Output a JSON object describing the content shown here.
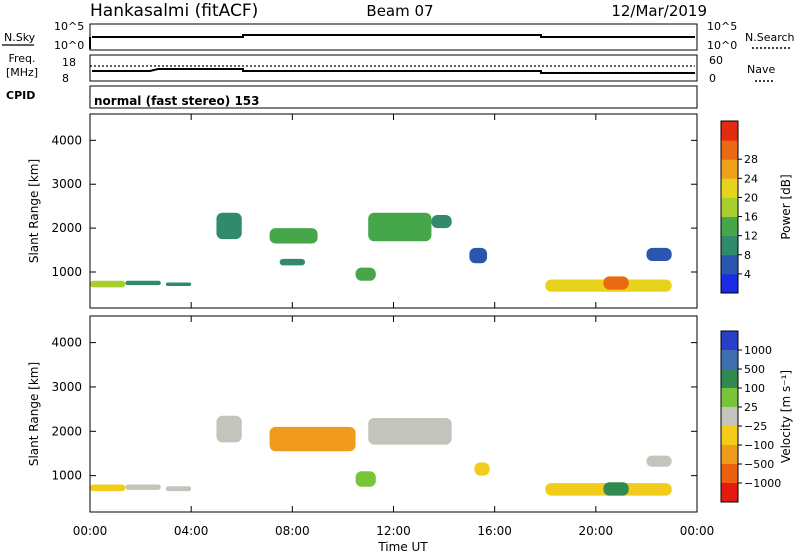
{
  "header": {
    "station": "Hankasalmi (fitACF)",
    "beam": "Beam 07",
    "date": "12/Mar/2019"
  },
  "top_panels": {
    "nsky_label": "N.Sky",
    "nsky_ticks": [
      "10^5",
      "10^0"
    ],
    "nsearch_label": "N.Search",
    "nsearch_ticks": [
      "10^5",
      "10^0"
    ],
    "freq_label_1": "Freq.",
    "freq_label_2": "[MHz]",
    "freq_ticks": [
      "18",
      "8"
    ],
    "nave_label": "Nave",
    "nave_ticks": [
      "60",
      "0"
    ],
    "cpid_label": "CPID",
    "cpid_text": "normal (fast stereo) 153"
  },
  "chart_data": [
    {
      "type": "heatmap",
      "title": "",
      "xlabel": "Time UT",
      "ylabel": "Slant Range [km]",
      "xlim": [
        0,
        24
      ],
      "ylim": [
        180,
        4600
      ],
      "x_ticks": [
        "00:00",
        "04:00",
        "08:00",
        "12:00",
        "16:00",
        "20:00",
        "00:00"
      ],
      "y_ticks": [
        "1000",
        "2000",
        "3000",
        "4000"
      ],
      "colorbar": {
        "label": "Power [dB]",
        "ticks": [
          "4",
          "8",
          "12",
          "16",
          "20",
          "24",
          "28"
        ],
        "colors": [
          "#1a2ae6",
          "#2a56b0",
          "#2f8a6e",
          "#46a64a",
          "#a8cf2e",
          "#e7d31c",
          "#f0a11c",
          "#ea6a14",
          "#e42a10"
        ]
      },
      "regions": [
        {
          "t": [
            0.0,
            1.4
          ],
          "r": [
            650,
            800
          ],
          "v": 16
        },
        {
          "t": [
            1.4,
            2.8
          ],
          "r": [
            700,
            800
          ],
          "v": 10
        },
        {
          "t": [
            3.0,
            4.0
          ],
          "r": [
            680,
            760
          ],
          "v": 8
        },
        {
          "t": [
            5.0,
            6.0
          ],
          "r": [
            1750,
            2350
          ],
          "v": 9
        },
        {
          "t": [
            7.1,
            9.0
          ],
          "r": [
            1650,
            2000
          ],
          "v": 14
        },
        {
          "t": [
            7.5,
            8.5
          ],
          "r": [
            1150,
            1300
          ],
          "v": 8
        },
        {
          "t": [
            10.5,
            11.3
          ],
          "r": [
            800,
            1100
          ],
          "v": 14
        },
        {
          "t": [
            11.0,
            13.5
          ],
          "r": [
            1700,
            2350
          ],
          "v": 12
        },
        {
          "t": [
            13.5,
            14.3
          ],
          "r": [
            2000,
            2300
          ],
          "v": 9
        },
        {
          "t": [
            15.0,
            15.7
          ],
          "r": [
            1200,
            1550
          ],
          "v": 6
        },
        {
          "t": [
            18.0,
            23.0
          ],
          "r": [
            550,
            830
          ],
          "v": 19
        },
        {
          "t": [
            20.3,
            21.3
          ],
          "r": [
            600,
            900
          ],
          "v": 26
        },
        {
          "t": [
            22.0,
            23.0
          ],
          "r": [
            1250,
            1550
          ],
          "v": 7
        }
      ]
    },
    {
      "type": "heatmap",
      "title": "",
      "xlabel": "Time UT",
      "ylabel": "Slant Range [km]",
      "xlim": [
        0,
        24
      ],
      "ylim": [
        180,
        4600
      ],
      "x_ticks": [
        "00:00",
        "04:00",
        "08:00",
        "12:00",
        "16:00",
        "20:00",
        "00:00"
      ],
      "y_ticks": [
        "1000",
        "2000",
        "3000",
        "4000"
      ],
      "colorbar": {
        "label": "Velocity [m s⁻¹]",
        "ticks": [
          "1000",
          "500",
          "100",
          "25",
          "−25",
          "−100",
          "−500",
          "−1000"
        ],
        "colors": [
          "#2840c8",
          "#3f6fb0",
          "#2f8a50",
          "#78c43a",
          "#c4c4bc",
          "#f2cc1a",
          "#f09a1e",
          "#ea6010",
          "#e41a10"
        ]
      },
      "regions": [
        {
          "t": [
            0.0,
            1.4
          ],
          "r": [
            650,
            800
          ],
          "v": -60
        },
        {
          "t": [
            1.4,
            2.8
          ],
          "r": [
            680,
            800
          ],
          "v": 0
        },
        {
          "t": [
            3.0,
            4.0
          ],
          "r": [
            650,
            760
          ],
          "v": 0
        },
        {
          "t": [
            5.0,
            6.0
          ],
          "r": [
            1750,
            2350
          ],
          "v": 0
        },
        {
          "t": [
            7.1,
            10.5
          ],
          "r": [
            1550,
            2100
          ],
          "v": -300
        },
        {
          "t": [
            10.5,
            11.3
          ],
          "r": [
            750,
            1100
          ],
          "v": 70
        },
        {
          "t": [
            11.0,
            14.3
          ],
          "r": [
            1700,
            2300
          ],
          "v": 0
        },
        {
          "t": [
            15.2,
            15.8
          ],
          "r": [
            1000,
            1300
          ],
          "v": -80
        },
        {
          "t": [
            18.0,
            23.0
          ],
          "r": [
            550,
            830
          ],
          "v": -60
        },
        {
          "t": [
            20.3,
            21.3
          ],
          "r": [
            550,
            850
          ],
          "v": 200
        },
        {
          "t": [
            22.0,
            23.0
          ],
          "r": [
            1200,
            1450
          ],
          "v": 0
        }
      ]
    }
  ]
}
